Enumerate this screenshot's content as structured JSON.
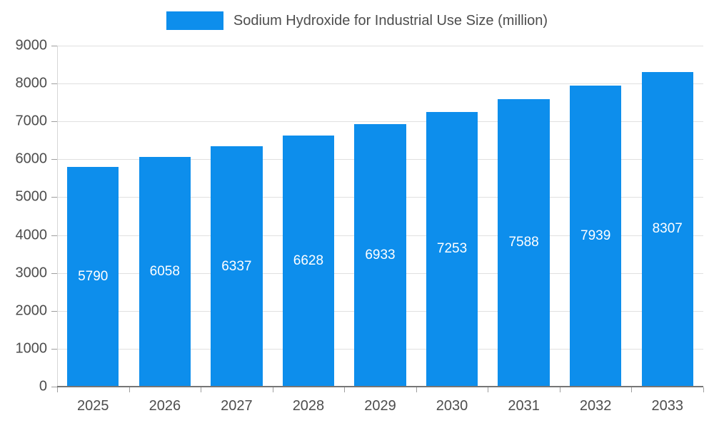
{
  "legend": {
    "label": "Sodium Hydroxide for Industrial Use Size (million)"
  },
  "colors": {
    "bar": "#0d8eec",
    "grid": "#e0e0e0",
    "axis": "#757575",
    "tick": "#9e9e9e",
    "text": "#4d4d4d",
    "value_label": "#ffffff"
  },
  "chart_data": {
    "type": "bar",
    "title": "Sodium Hydroxide for Industrial Use Size (million)",
    "categories": [
      "2025",
      "2026",
      "2027",
      "2028",
      "2029",
      "2030",
      "2031",
      "2032",
      "2033"
    ],
    "values": [
      5790,
      6058,
      6337,
      6628,
      6933,
      7253,
      7588,
      7939,
      8307
    ],
    "xlabel": "",
    "ylabel": "",
    "ylim": [
      0,
      9000
    ],
    "ytick_step": 1000,
    "grid": true,
    "legend_position": "top"
  }
}
